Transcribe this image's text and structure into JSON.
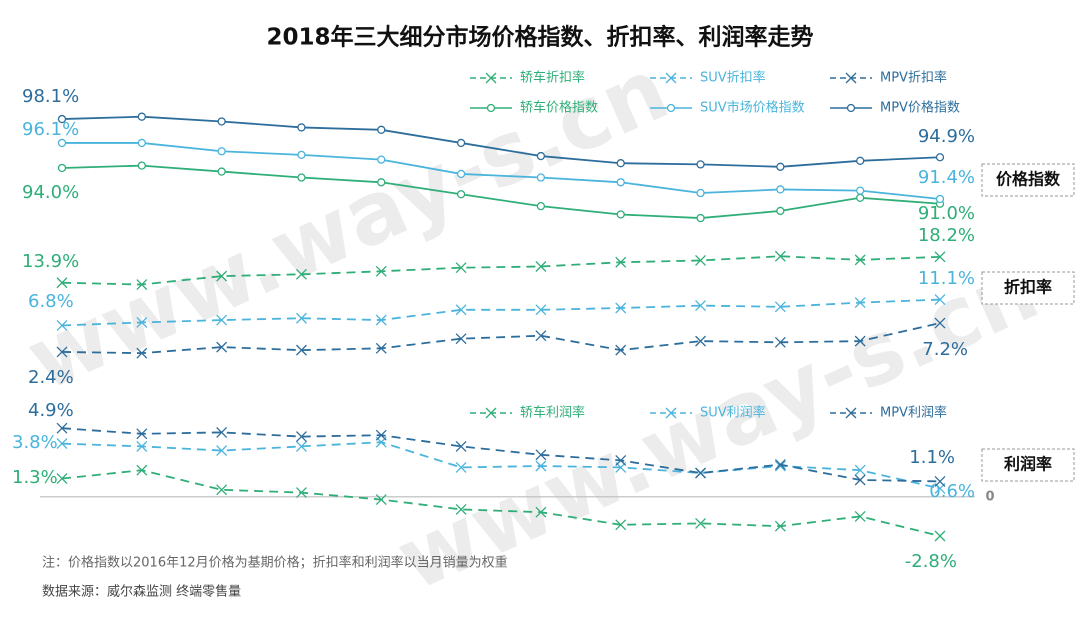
{
  "title": "2018年三大细分市场价格指数、折扣率、利润率走势",
  "note": "注：价格指数以2016年12月价格为基期价格；折扣率和利润率以当月销量为权重",
  "source": "数据来源：威尔森监测 终端零售量",
  "watermark": "www.way-s.cn",
  "chart_data": [
    {
      "type": "line",
      "label": "价格指数",
      "categories": [
        null,
        null,
        null,
        null,
        null,
        null,
        null,
        null,
        null,
        null,
        null,
        null
      ],
      "ylim": [
        88.8,
        99.7
      ],
      "series": [
        {
          "name": "轿车价格指数",
          "color": "#2fae78",
          "marker": "circle",
          "dashed": false,
          "values": [
            94.0,
            94.2,
            93.7,
            93.2,
            92.8,
            91.8,
            90.8,
            90.1,
            89.8,
            90.4,
            91.5,
            91.0
          ],
          "value_labels": [
            "94.0%",
            null,
            null,
            null,
            null,
            null,
            null,
            null,
            null,
            null,
            null,
            "91.0%"
          ]
        },
        {
          "name": "SUV市场价格指数",
          "color": "#4ab4dc",
          "marker": "circle",
          "dashed": false,
          "values": [
            96.1,
            96.1,
            95.4,
            95.1,
            94.7,
            93.5,
            93.2,
            92.8,
            91.9,
            92.2,
            92.1,
            91.4
          ],
          "value_labels": [
            "96.1%",
            null,
            null,
            null,
            null,
            null,
            null,
            null,
            null,
            null,
            null,
            "91.4%"
          ]
        },
        {
          "name": "MPV价格指数",
          "color": "#2d6d9c",
          "marker": "circle",
          "dashed": false,
          "values": [
            98.1,
            98.3,
            97.9,
            97.4,
            97.2,
            96.1,
            95.0,
            94.4,
            94.3,
            94.1,
            94.6,
            94.9
          ],
          "value_labels": [
            "98.1%",
            null,
            null,
            null,
            null,
            null,
            null,
            null,
            null,
            null,
            null,
            "94.9%"
          ]
        }
      ]
    },
    {
      "type": "line",
      "label": "折扣率",
      "categories": [
        null,
        null,
        null,
        null,
        null,
        null,
        null,
        null,
        null,
        null,
        null,
        null
      ],
      "ylim": [
        -0.6,
        21
      ],
      "series": [
        {
          "name": "轿车折扣率",
          "color": "#2fae78",
          "marker": "x",
          "dashed": true,
          "values": [
            13.9,
            13.6,
            15.0,
            15.3,
            15.8,
            16.4,
            16.6,
            17.3,
            17.6,
            18.3,
            17.7,
            18.2
          ],
          "value_labels": [
            "13.9%",
            null,
            null,
            null,
            null,
            null,
            null,
            null,
            null,
            null,
            null,
            "18.2%"
          ]
        },
        {
          "name": "SUV折扣率",
          "color": "#4ab4dc",
          "marker": "x",
          "dashed": true,
          "values": [
            6.8,
            7.3,
            7.7,
            8.0,
            7.7,
            9.4,
            9.4,
            9.7,
            10.1,
            9.9,
            10.6,
            11.1
          ],
          "value_labels": [
            "6.8%",
            null,
            null,
            null,
            null,
            null,
            null,
            null,
            null,
            null,
            null,
            "11.1%"
          ]
        },
        {
          "name": "MPV折扣率",
          "color": "#2d6d9c",
          "marker": "x",
          "dashed": true,
          "values": [
            2.4,
            2.2,
            3.2,
            2.7,
            3.0,
            4.6,
            5.1,
            2.7,
            4.2,
            4.0,
            4.2,
            7.2
          ],
          "value_labels": [
            "2.4%",
            null,
            null,
            null,
            null,
            null,
            null,
            null,
            null,
            null,
            null,
            "7.2%"
          ]
        }
      ]
    },
    {
      "type": "line",
      "label": "利润率",
      "categories": [
        null,
        null,
        null,
        null,
        null,
        null,
        null,
        null,
        null,
        null,
        null,
        null
      ],
      "ylim": [
        -3.8,
        6.2
      ],
      "yticks": [
        0
      ],
      "grid": true,
      "series": [
        {
          "name": "轿车利润率",
          "color": "#2fae78",
          "marker": "x",
          "dashed": true,
          "values": [
            1.3,
            1.9,
            0.5,
            0.3,
            -0.2,
            -0.9,
            -1.1,
            -2.0,
            -1.9,
            -2.1,
            -1.4,
            -2.8
          ],
          "value_labels": [
            "1.3%",
            null,
            null,
            null,
            null,
            null,
            null,
            null,
            null,
            null,
            null,
            "-2.8%"
          ]
        },
        {
          "name": "SUV利润率",
          "color": "#4ab4dc",
          "marker": "x",
          "dashed": true,
          "values": [
            3.8,
            3.6,
            3.3,
            3.6,
            3.9,
            2.1,
            2.2,
            2.1,
            1.7,
            2.2,
            1.9,
            0.6
          ],
          "value_labels": [
            "3.8%",
            null,
            null,
            null,
            null,
            null,
            null,
            null,
            null,
            null,
            null,
            "0.6%"
          ]
        },
        {
          "name": "MPV利润率",
          "color": "#2d6d9c",
          "marker": "x",
          "dashed": true,
          "values": [
            4.9,
            4.5,
            4.6,
            4.3,
            4.4,
            3.6,
            3.0,
            2.6,
            1.7,
            2.3,
            1.2,
            1.1
          ],
          "value_labels": [
            "4.9%",
            null,
            null,
            null,
            null,
            null,
            null,
            null,
            null,
            null,
            null,
            "1.1%"
          ]
        }
      ]
    }
  ]
}
